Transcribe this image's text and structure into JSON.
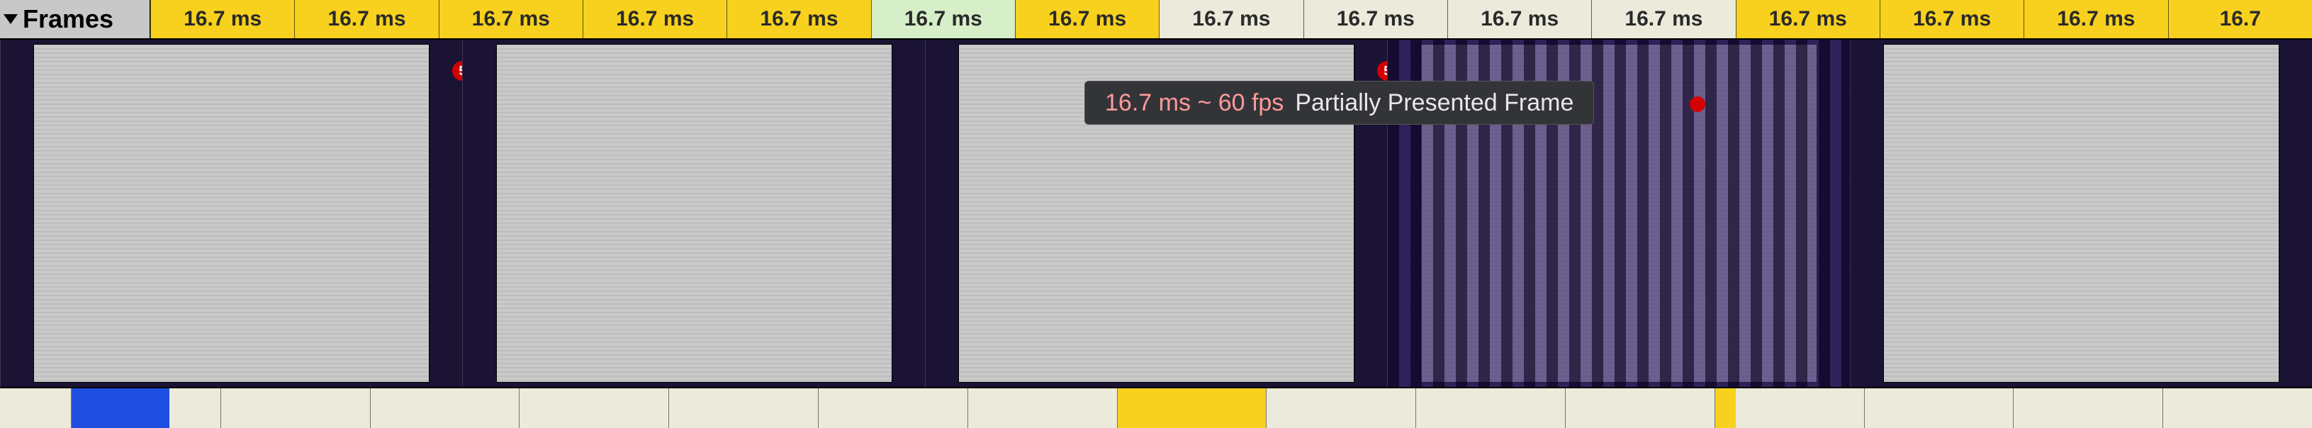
{
  "ruler": {
    "frames_label": "Frames",
    "cell_label": "16.7 ms",
    "cell_label_last": "16.7",
    "count": 15,
    "text_color": "#2a2a2a",
    "colors": {
      "yellow": "#f7d11e",
      "greenish": "#d7efc9",
      "cream": "#eceada"
    },
    "pattern": [
      "yellow",
      "yellow",
      "yellow",
      "yellow",
      "yellow",
      "greenish",
      "yellow",
      "cream",
      "cream",
      "cream",
      "cream",
      "yellow",
      "yellow",
      "yellow",
      "yellow"
    ]
  },
  "shots": {
    "count": 5,
    "marker_label": "5",
    "marker_color": "#d40000",
    "panels": [
      {
        "striped": false,
        "marker": "right"
      },
      {
        "striped": false,
        "marker": "none"
      },
      {
        "striped": false,
        "marker": "right"
      },
      {
        "striped": true,
        "marker": "none"
      },
      {
        "striped": false,
        "marker": "none"
      }
    ]
  },
  "tooltip": {
    "timing": "16.7 ms ~ 60 fps",
    "label": "Partially Presented Frame",
    "timing_color": "#ff9a9a",
    "bg": "#333438"
  },
  "bars": {
    "colors": {
      "blue": "#1f4fe0",
      "cream": "#eceada",
      "yellow": "#f7d11e"
    },
    "segments": [
      [
        [
          "blue",
          66
        ],
        [
          "cream",
          34
        ]
      ],
      [
        [
          "cream",
          100
        ]
      ],
      [
        [
          "cream",
          100
        ]
      ],
      [
        [
          "cream",
          100
        ]
      ],
      [
        [
          "cream",
          100
        ]
      ],
      [
        [
          "cream",
          100
        ]
      ],
      [
        [
          "cream",
          100
        ]
      ],
      [
        [
          "yellow",
          100
        ]
      ],
      [
        [
          "cream",
          100
        ]
      ],
      [
        [
          "cream",
          100
        ]
      ],
      [
        [
          "cream",
          100
        ]
      ],
      [
        [
          "yellow",
          14
        ],
        [
          "cream",
          86
        ]
      ],
      [
        [
          "cream",
          100
        ]
      ],
      [
        [
          "cream",
          100
        ]
      ],
      [
        [
          "cream",
          100
        ]
      ]
    ]
  }
}
